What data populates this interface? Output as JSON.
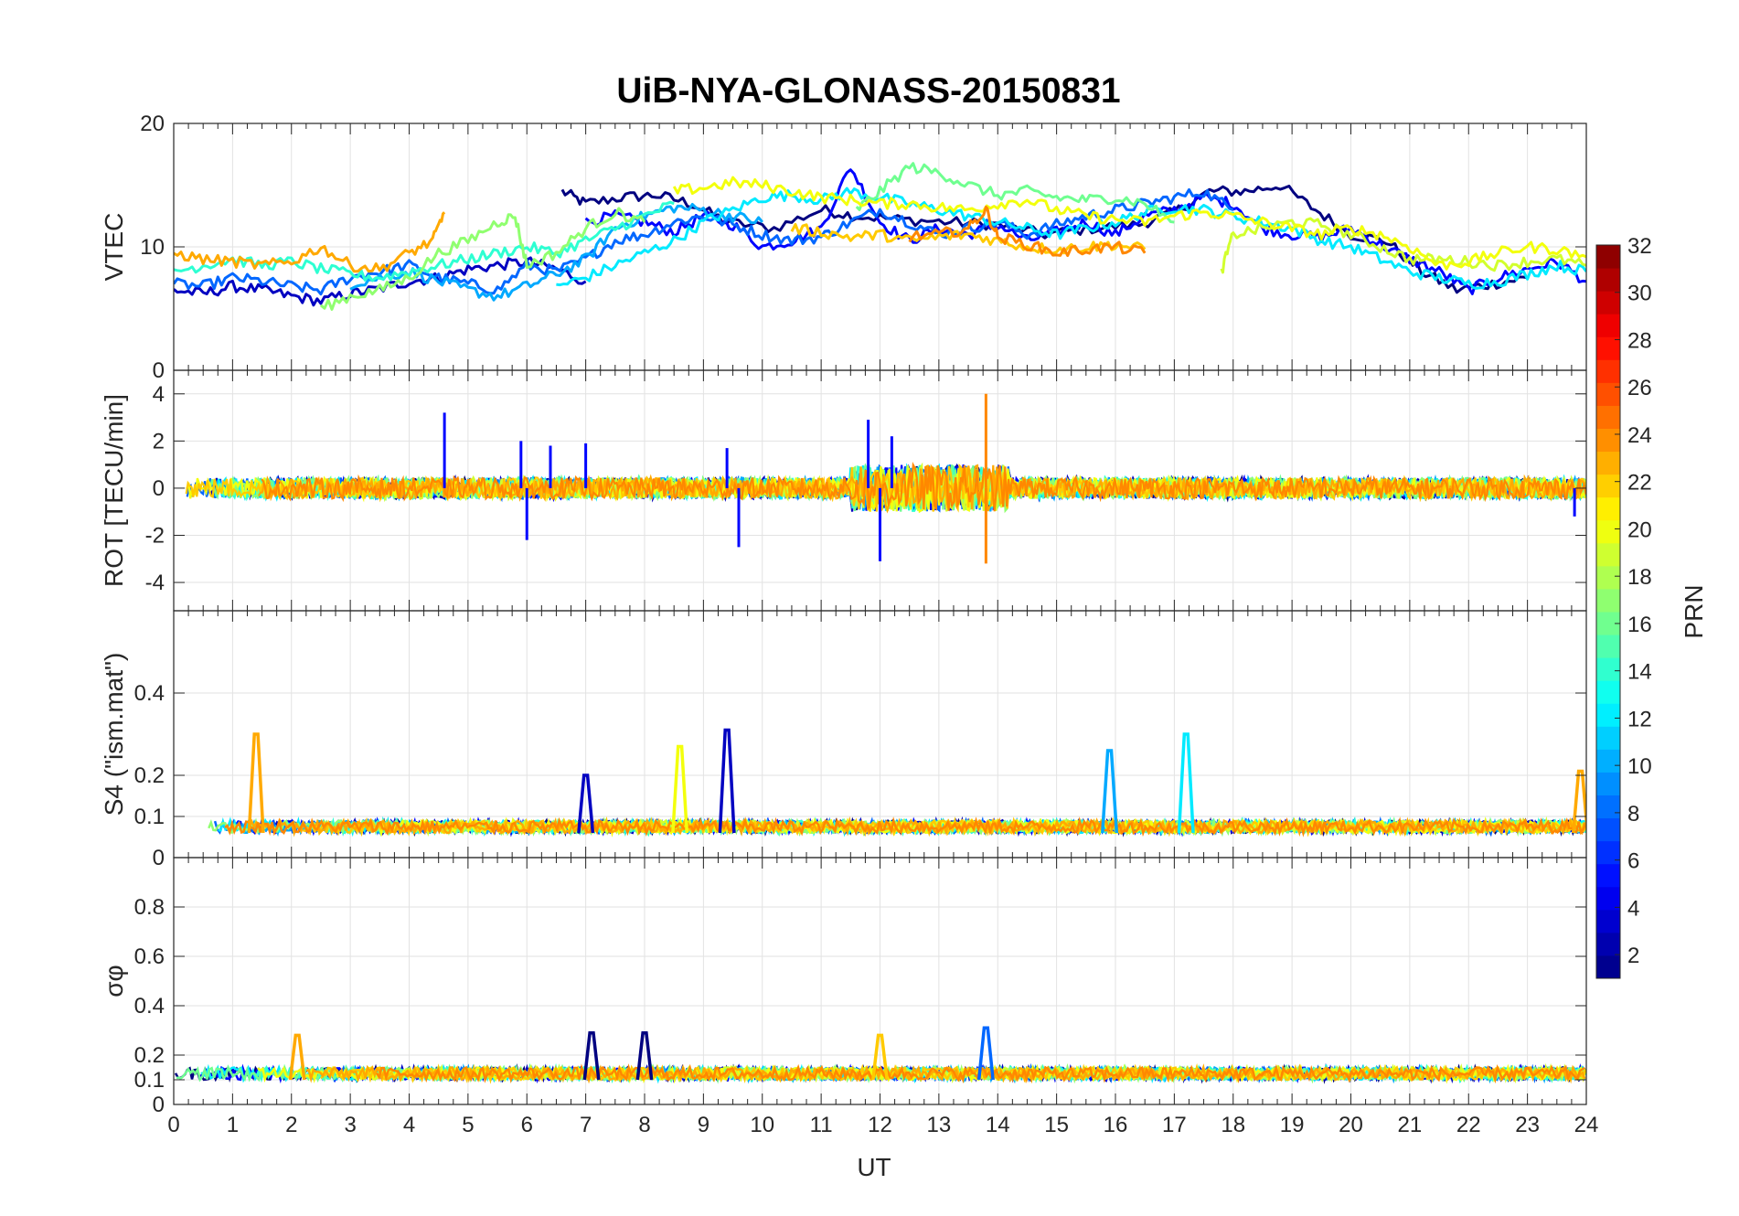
{
  "title": "UiB-NYA-GLONASS-20150831",
  "xlabel": "UT",
  "x_ticks": [
    0,
    1,
    2,
    3,
    4,
    5,
    6,
    7,
    8,
    9,
    10,
    11,
    12,
    13,
    14,
    15,
    16,
    17,
    18,
    19,
    20,
    21,
    22,
    23,
    24
  ],
  "colorbar": {
    "label": "PRN",
    "ticks": [
      2,
      4,
      6,
      8,
      10,
      12,
      14,
      16,
      18,
      20,
      22,
      24,
      26,
      28,
      30,
      32
    ],
    "min": 1,
    "max": 32,
    "colormap": "jet"
  },
  "chart_data": [
    {
      "type": "line",
      "panel": "VTEC",
      "ylabel": "VTEC",
      "ylim": [
        0,
        20
      ],
      "yticks": [
        0,
        10,
        20
      ],
      "xlim": [
        0,
        24
      ],
      "grid": true,
      "series": [
        {
          "prn": 1,
          "x": [
            6.6,
            7.0,
            7.6,
            8.2,
            8.8,
            9.4,
            10.2,
            11.0,
            11.6,
            12.4,
            13.2,
            14.0,
            14.8,
            15.6,
            16.4,
            17.0,
            17.6,
            18.2,
            18.8,
            19.4,
            20.0,
            20.6,
            21.2,
            21.8,
            22.4,
            23.0
          ],
          "y": [
            14.5,
            13.5,
            14.0,
            14.2,
            13.5,
            12.0,
            11.5,
            13.0,
            12.5,
            12.2,
            12.0,
            11.8,
            11.0,
            11.5,
            11.8,
            12.8,
            14.5,
            14.5,
            15.0,
            13.0,
            11.0,
            10.5,
            8.0,
            6.5,
            7.0,
            7.5
          ]
        },
        {
          "prn": 3,
          "x": [
            0.0,
            0.5,
            1.0,
            1.5,
            2.0,
            2.5,
            3.0,
            3.5,
            4.0,
            4.5,
            5.0,
            5.5,
            6.0,
            6.5,
            7.0
          ],
          "y": [
            6.5,
            6.2,
            6.8,
            6.5,
            6.0,
            5.6,
            6.2,
            6.6,
            7.2,
            7.5,
            8.2,
            8.5,
            8.8,
            8.2,
            7.2
          ]
        },
        {
          "prn": 5,
          "x": [
            7.0,
            7.5,
            8.0,
            8.5,
            9.0,
            9.5,
            10.0,
            10.5,
            11.0,
            11.5,
            12.0,
            12.5,
            13.0,
            13.5,
            14.0,
            14.5,
            15.0,
            15.5,
            16.0,
            16.5,
            17.0,
            17.5,
            18.0,
            18.5,
            19.0,
            19.5,
            20.0,
            20.5,
            21.0,
            21.5,
            22.0,
            22.5,
            23.0,
            23.5,
            24.0
          ],
          "y": [
            12.0,
            12.5,
            12.0,
            11.2,
            12.5,
            11.8,
            10.0,
            10.5,
            11.5,
            16.5,
            12.0,
            10.5,
            11.5,
            11.0,
            11.8,
            10.5,
            11.2,
            12.0,
            11.0,
            12.5,
            13.0,
            14.0,
            13.5,
            11.5,
            11.0,
            10.8,
            11.5,
            10.2,
            9.0,
            8.0,
            6.5,
            7.5,
            8.2,
            8.8,
            7.2
          ]
        },
        {
          "prn": 8,
          "x": [
            0.0,
            0.5,
            1.0,
            1.5,
            2.0,
            2.5,
            3.0,
            3.5,
            4.0,
            4.5,
            5.0,
            5.5,
            6.0,
            6.5,
            7.0,
            7.5,
            8.0,
            8.5,
            9.0,
            9.5,
            10.0,
            10.5,
            11.0,
            11.5,
            12.0,
            12.5,
            13.0,
            13.5,
            14.0,
            14.5,
            15.0,
            15.5,
            16.0,
            16.5,
            17.0,
            17.5,
            18.0
          ],
          "y": [
            7.0,
            6.8,
            7.5,
            7.2,
            6.8,
            6.5,
            7.5,
            8.0,
            8.5,
            7.5,
            7.0,
            6.5,
            8.5,
            8.0,
            9.0,
            10.5,
            11.0,
            12.0,
            12.5,
            11.8,
            11.0,
            10.5,
            10.8,
            12.0,
            13.0,
            12.0,
            11.0,
            11.5,
            12.0,
            11.0,
            11.8,
            12.5,
            13.0,
            13.5,
            14.0,
            14.5,
            13.0
          ]
        },
        {
          "prn": 10,
          "x": [
            3.0,
            3.5,
            4.0,
            4.5,
            5.0,
            5.5,
            6.0,
            6.5,
            7.0,
            7.5,
            8.0,
            8.5,
            9.0,
            9.5,
            10.0
          ],
          "y": [
            7.0,
            7.5,
            8.0,
            7.2,
            6.5,
            6.0,
            6.8,
            7.8,
            9.0,
            11.5,
            12.5,
            13.2,
            13.0,
            12.5,
            12.0
          ]
        },
        {
          "prn": 12,
          "x": [
            6.5,
            7.0,
            7.5,
            8.0,
            8.5,
            9.0,
            9.5,
            10.0,
            10.5,
            11.0,
            11.5,
            12.0,
            12.5,
            13.0,
            13.5,
            14.0,
            14.5,
            15.0,
            15.5,
            16.0,
            16.5,
            17.0,
            17.5,
            18.0,
            18.5,
            19.0,
            19.5,
            20.0,
            20.5,
            21.0,
            21.5,
            22.0,
            22.5,
            23.0,
            23.5,
            24.0
          ],
          "y": [
            6.8,
            7.5,
            8.5,
            9.5,
            10.5,
            12.0,
            13.0,
            14.0,
            14.2,
            13.8,
            14.5,
            14.0,
            13.5,
            13.0,
            12.5,
            12.0,
            11.5,
            11.0,
            11.5,
            12.0,
            12.8,
            13.2,
            13.0,
            12.5,
            12.0,
            11.5,
            10.5,
            10.0,
            9.0,
            8.0,
            7.5,
            7.0,
            7.2,
            7.8,
            8.5,
            8.0
          ]
        },
        {
          "prn": 14,
          "x": [
            0.0,
            0.5,
            1.0,
            1.5,
            2.0,
            2.5,
            3.0,
            3.5,
            4.0,
            4.5,
            5.0,
            5.5,
            6.0,
            6.5,
            7.0,
            7.5,
            8.0,
            8.5
          ],
          "y": [
            8.0,
            8.5,
            9.0,
            8.5,
            8.8,
            8.2,
            7.8,
            7.5,
            8.0,
            8.5,
            9.0,
            9.5,
            10.0,
            9.5,
            10.5,
            11.5,
            12.5,
            13.5
          ]
        },
        {
          "prn": 16,
          "x": [
            11.6,
            12.0,
            12.5,
            13.0,
            13.5,
            14.0,
            14.5,
            15.0,
            15.5,
            16.0,
            16.5,
            17.0
          ],
          "y": [
            13.0,
            14.5,
            16.5,
            16.0,
            15.0,
            14.2,
            14.5,
            14.0,
            13.8,
            14.0,
            13.5,
            12.0
          ]
        },
        {
          "prn": 17,
          "x": [
            2.5,
            3.0,
            3.5,
            4.0,
            4.5,
            5.0,
            5.5,
            5.8,
            6.0,
            6.5,
            7.0,
            7.5,
            8.0
          ],
          "y": [
            5.0,
            6.0,
            6.5,
            7.5,
            9.5,
            10.5,
            12.0,
            12.5,
            8.5,
            9.5,
            11.5,
            12.8,
            12.0
          ]
        },
        {
          "prn": 19,
          "x": [
            17.8,
            18.0,
            18.5,
            19.0,
            19.5,
            20.0,
            20.5,
            21.0,
            21.5,
            22.0,
            22.5,
            23.0,
            23.5,
            24.0
          ],
          "y": [
            8.0,
            11.0,
            11.5,
            12.0,
            11.8,
            11.0,
            10.0,
            9.0,
            9.0,
            8.8,
            8.5,
            8.8,
            9.0,
            8.5
          ]
        },
        {
          "prn": 20,
          "x": [
            8.5,
            9.0,
            9.5,
            10.0,
            10.5,
            11.0,
            11.5,
            12.0,
            12.5,
            13.0,
            13.5,
            14.0,
            14.5,
            15.0,
            15.5,
            16.0,
            16.5,
            17.0,
            17.5,
            18.0,
            18.5,
            19.0,
            19.5,
            20.0,
            20.5,
            21.0,
            21.5,
            22.0,
            22.5,
            23.0,
            23.5,
            24.0
          ],
          "y": [
            14.5,
            14.8,
            15.2,
            15.0,
            14.5,
            14.0,
            13.8,
            13.5,
            13.5,
            13.2,
            13.0,
            13.5,
            13.8,
            13.0,
            12.5,
            12.2,
            12.0,
            12.5,
            12.8,
            12.5,
            12.0,
            11.5,
            11.0,
            11.5,
            11.0,
            10.0,
            8.5,
            8.8,
            9.5,
            10.0,
            9.8,
            9.2
          ]
        },
        {
          "prn": 22,
          "x": [
            10.5,
            11.0,
            11.5,
            12.0,
            12.5,
            13.0,
            13.5,
            14.0,
            14.5,
            15.0,
            15.5,
            16.0,
            16.5
          ],
          "y": [
            11.5,
            11.2,
            10.8,
            11.0,
            10.5,
            10.8,
            11.0,
            10.5,
            10.0,
            9.8,
            10.0,
            10.2,
            9.8
          ]
        },
        {
          "prn": 23,
          "x": [
            0.0,
            0.5,
            1.0,
            1.5,
            2.0,
            2.5,
            3.0,
            3.5,
            4.0,
            4.4,
            4.6
          ],
          "y": [
            9.5,
            9.0,
            8.8,
            8.5,
            8.8,
            10.0,
            8.5,
            8.2,
            9.5,
            10.5,
            12.8
          ]
        },
        {
          "prn": 24,
          "x": [
            12.5,
            13.0,
            13.5,
            13.8,
            14.0,
            14.5,
            15.0,
            15.5,
            16.0,
            16.5
          ],
          "y": [
            10.8,
            11.0,
            11.5,
            13.0,
            10.8,
            10.2,
            9.5,
            9.8,
            10.0,
            9.5
          ]
        }
      ]
    },
    {
      "type": "line",
      "panel": "ROT",
      "ylabel": "ROT [TECU/min]",
      "ylim": [
        -5.2,
        5
      ],
      "yticks": [
        -4,
        -2,
        0,
        2,
        4
      ],
      "xlim": [
        0,
        24
      ],
      "grid": true,
      "spikes": [
        {
          "x": 4.6,
          "y": 3.2
        },
        {
          "x": 5.9,
          "y": 2.0
        },
        {
          "x": 6.4,
          "y": 1.8
        },
        {
          "x": 7.0,
          "y": 1.9
        },
        {
          "x": 9.4,
          "y": 1.7
        },
        {
          "x": 9.6,
          "y": -2.5
        },
        {
          "x": 6.0,
          "y": -2.2
        },
        {
          "x": 11.8,
          "y": 2.9
        },
        {
          "x": 12.0,
          "y": -3.1
        },
        {
          "x": 12.2,
          "y": 2.2
        },
        {
          "x": 13.8,
          "y": 4.0
        },
        {
          "x": 13.8,
          "y": -3.2
        },
        {
          "x": 23.8,
          "y": -1.2
        }
      ],
      "series_prns": [
        1,
        3,
        5,
        8,
        10,
        12,
        14,
        16,
        17,
        19,
        20,
        22,
        23,
        24
      ]
    },
    {
      "type": "line",
      "panel": "S4",
      "ylabel": "S4 (\"ism.mat\")",
      "ylim": [
        0,
        0.6
      ],
      "yticks": [
        0,
        0.1,
        0.2,
        0.4
      ],
      "xlim": [
        0,
        24
      ],
      "grid": true,
      "peaks": [
        {
          "x": 1.4,
          "y": 0.3,
          "prn": 23
        },
        {
          "x": 7.0,
          "y": 0.2,
          "prn": 3
        },
        {
          "x": 8.6,
          "y": 0.27,
          "prn": 20
        },
        {
          "x": 9.4,
          "y": 0.31,
          "prn": 3
        },
        {
          "x": 15.9,
          "y": 0.26,
          "prn": 10
        },
        {
          "x": 17.2,
          "y": 0.3,
          "prn": 12
        },
        {
          "x": 23.9,
          "y": 0.21,
          "prn": 23
        }
      ]
    },
    {
      "type": "line",
      "panel": "sigma_phi",
      "ylabel": "σφ",
      "ylim": [
        0,
        1
      ],
      "yticks": [
        0,
        0.1,
        0.2,
        0.4,
        0.6,
        0.8
      ],
      "xlim": [
        0,
        24
      ],
      "grid": true,
      "peaks": [
        {
          "x": 2.1,
          "y": 0.28,
          "prn": 23
        },
        {
          "x": 7.1,
          "y": 0.29,
          "prn": 1
        },
        {
          "x": 8.0,
          "y": 0.29,
          "prn": 1
        },
        {
          "x": 12.0,
          "y": 0.28,
          "prn": 22
        },
        {
          "x": 13.8,
          "y": 0.31,
          "prn": 8
        }
      ]
    }
  ]
}
